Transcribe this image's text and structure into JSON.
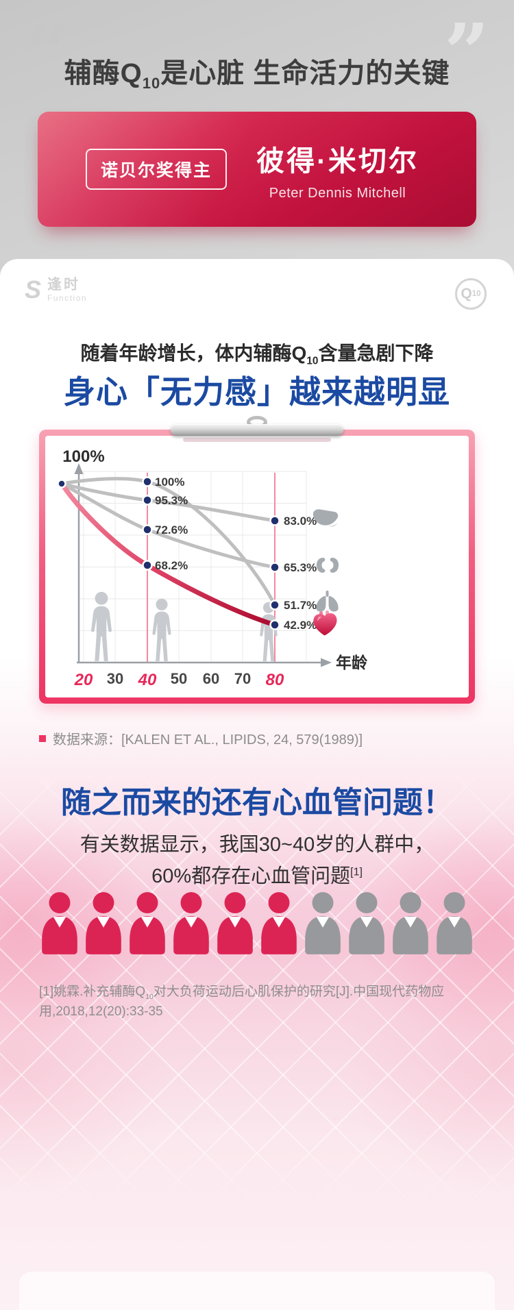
{
  "colors": {
    "accent_red": "#d61949",
    "headline_blue": "#1b4aa2",
    "frame_pink": "#ee3462",
    "tick_highlight_red": "#e7285a",
    "person_red": "#dc2454",
    "person_gray": "#97999c",
    "curve_gray": "#bfbfbf",
    "heart_curve_red": "#c8103a"
  },
  "hero": {
    "quote_open": "“",
    "quote_close": "”",
    "title": {
      "pre": "辅酶Q",
      "sub": "10",
      "post": "是心脏 生命活力的关键"
    },
    "card": {
      "badge": "诺贝尔奖得主",
      "name_cn": "彼得·米切尔",
      "name_en": "Peter Dennis Mitchell"
    }
  },
  "brand": {
    "logo_icon": "S",
    "logo_cn": "逢时",
    "logo_en": "Function",
    "q_badge": {
      "pre": "Q",
      "sub": "10"
    }
  },
  "section1": {
    "subtitle": {
      "pre": "随着年龄增长，体内辅酶Q",
      "sub": "10",
      "post": "含量急剧下降"
    },
    "headline": "身心「无力感」越来越明显",
    "source": "数据来源：[KALEN ET AL., LIPIDS, 24, 579(1989)]"
  },
  "chart_data": {
    "type": "line",
    "xlabel": "年龄",
    "ylabel_top": "100%",
    "x_ticks": [
      "20",
      "30",
      "40",
      "50",
      "60",
      "70",
      "80"
    ],
    "highlighted_ticks": [
      "20",
      "40",
      "80"
    ],
    "ages_sampled": [
      20,
      40,
      80
    ],
    "ylim": [
      0,
      100
    ],
    "grid": true,
    "series": [
      {
        "name": "肺",
        "organ": "lung",
        "icon": "lungs-icon",
        "values_pct": [
          100,
          100,
          51.7
        ]
      },
      {
        "name": "肝",
        "organ": "liver",
        "icon": "liver-icon",
        "values_pct": [
          100,
          95.3,
          83.0
        ]
      },
      {
        "name": "肾",
        "organ": "kidney",
        "icon": "kidneys-icon",
        "values_pct": [
          100,
          72.6,
          65.3
        ]
      },
      {
        "name": "心",
        "organ": "heart",
        "icon": "heart-icon",
        "values_pct": [
          100,
          68.2,
          42.9
        ],
        "highlight": true
      }
    ],
    "point_labels_age40": [
      "100%",
      "95.3%",
      "72.6%",
      "68.2%"
    ],
    "point_labels_age80": [
      "83.0%",
      "65.3%",
      "51.7%",
      "42.9%"
    ],
    "source": "[KALEN ET AL., LIPIDS, 24, 579(1989)]"
  },
  "section2": {
    "headline": "随之而来的还有心血管问题！",
    "line1": "有关数据显示，我国30~40岁的人群中，",
    "line2": "60%都存在心血管问题",
    "ref_sup": "[1]",
    "people": {
      "total": 10,
      "highlighted": 6,
      "gray": 4
    },
    "footnote": {
      "pre": "[1]姚霖.补充辅酶Q",
      "sub": "10",
      "post": "对大负荷运动后心肌保护的研究[J].中国现代药物应用,2018,12(20):33-35"
    }
  }
}
